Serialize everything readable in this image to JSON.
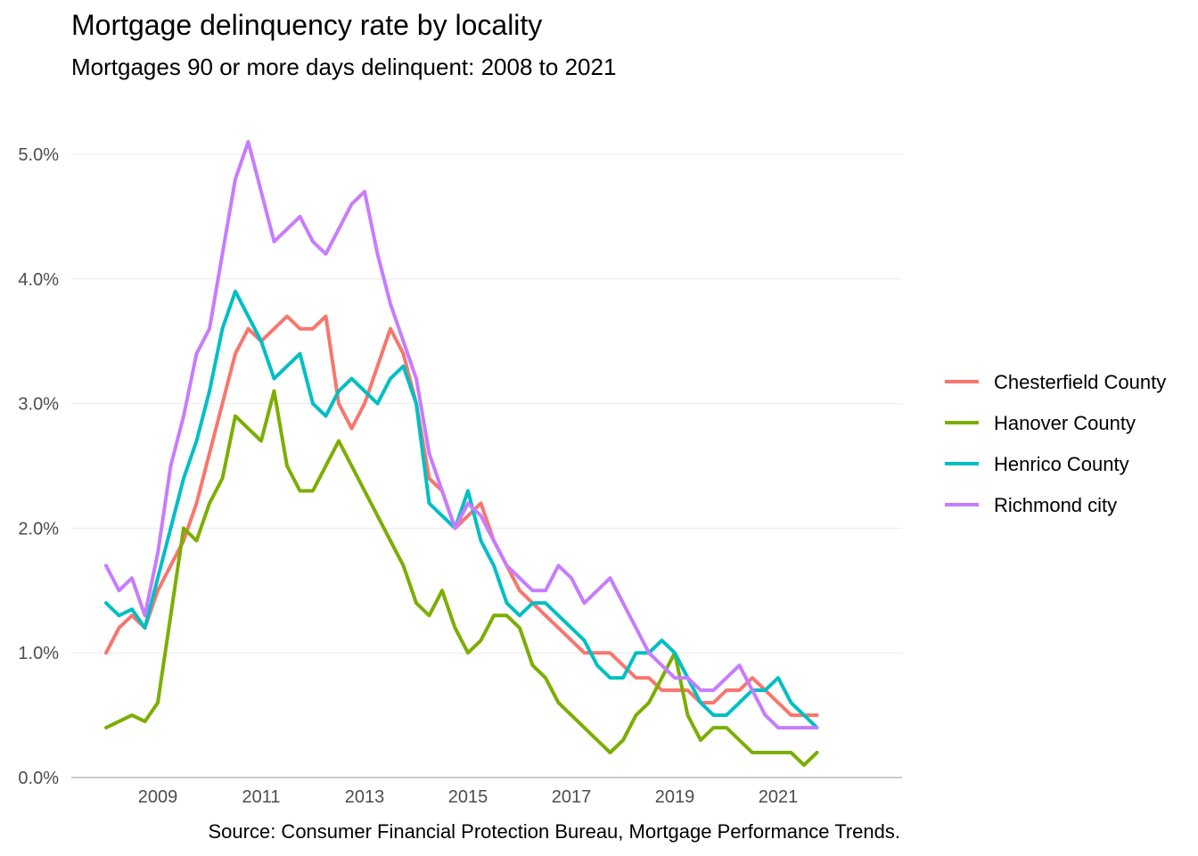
{
  "chart_data": {
    "type": "line",
    "title": "Mortgage delinquency rate by locality",
    "subtitle": "Mortgages 90 or more days delinquent: 2008 to 2021",
    "caption": "Source: Consumer Financial Protection Bureau, Mortgage Performance Trends.",
    "xlabel": "",
    "ylabel": "",
    "x_start": 2008.0,
    "x_step": 0.25,
    "xlim": [
      2008.0,
      2021.75
    ],
    "ylim": [
      0,
      5.3
    ],
    "x_ticks": [
      "2009",
      "2011",
      "2013",
      "2015",
      "2017",
      "2019",
      "2021"
    ],
    "y_ticks": [
      "0.0%",
      "1.0%",
      "2.0%",
      "3.0%",
      "4.0%",
      "5.0%"
    ],
    "legend_position": "right",
    "grid": true,
    "series": [
      {
        "name": "Chesterfield County",
        "color": "#F8766D",
        "values": [
          1.0,
          1.2,
          1.3,
          1.2,
          1.5,
          1.7,
          1.9,
          2.2,
          2.6,
          3.0,
          3.4,
          3.6,
          3.5,
          3.6,
          3.7,
          3.6,
          3.6,
          3.7,
          3.0,
          2.8,
          3.0,
          3.3,
          3.6,
          3.4,
          3.0,
          2.4,
          2.3,
          2.0,
          2.1,
          2.2,
          1.9,
          1.7,
          1.5,
          1.4,
          1.3,
          1.2,
          1.1,
          1.0,
          1.0,
          1.0,
          0.9,
          0.8,
          0.8,
          0.7,
          0.7,
          0.7,
          0.6,
          0.6,
          0.7,
          0.7,
          0.8,
          0.7,
          0.6,
          0.5,
          0.5,
          0.5
        ]
      },
      {
        "name": "Hanover County",
        "color": "#7CAE00",
        "values": [
          0.4,
          0.45,
          0.5,
          0.45,
          0.6,
          1.3,
          2.0,
          1.9,
          2.2,
          2.4,
          2.9,
          2.8,
          2.7,
          3.1,
          2.5,
          2.3,
          2.3,
          2.5,
          2.7,
          2.5,
          2.3,
          2.1,
          1.9,
          1.7,
          1.4,
          1.3,
          1.5,
          1.2,
          1.0,
          1.1,
          1.3,
          1.3,
          1.2,
          0.9,
          0.8,
          0.6,
          0.5,
          0.4,
          0.3,
          0.2,
          0.3,
          0.5,
          0.6,
          0.8,
          1.0,
          0.5,
          0.3,
          0.4,
          0.4,
          0.3,
          0.2,
          0.2,
          0.2,
          0.2,
          0.1,
          0.2
        ]
      },
      {
        "name": "Henrico County",
        "color": "#00BFC4",
        "values": [
          1.4,
          1.3,
          1.35,
          1.2,
          1.6,
          2.0,
          2.4,
          2.7,
          3.1,
          3.6,
          3.9,
          3.7,
          3.5,
          3.2,
          3.3,
          3.4,
          3.0,
          2.9,
          3.1,
          3.2,
          3.1,
          3.0,
          3.2,
          3.3,
          3.0,
          2.2,
          2.1,
          2.0,
          2.3,
          1.9,
          1.7,
          1.4,
          1.3,
          1.4,
          1.4,
          1.3,
          1.2,
          1.1,
          0.9,
          0.8,
          0.8,
          1.0,
          1.0,
          1.1,
          1.0,
          0.8,
          0.6,
          0.5,
          0.5,
          0.6,
          0.7,
          0.7,
          0.8,
          0.6,
          0.5,
          0.4
        ]
      },
      {
        "name": "Richmond city",
        "color": "#C77CFF",
        "values": [
          1.7,
          1.5,
          1.6,
          1.3,
          1.8,
          2.5,
          2.9,
          3.4,
          3.6,
          4.2,
          4.8,
          5.1,
          4.7,
          4.3,
          4.4,
          4.5,
          4.3,
          4.2,
          4.4,
          4.6,
          4.7,
          4.2,
          3.8,
          3.5,
          3.2,
          2.6,
          2.3,
          2.0,
          2.2,
          2.1,
          1.9,
          1.7,
          1.6,
          1.5,
          1.5,
          1.7,
          1.6,
          1.4,
          1.5,
          1.6,
          1.4,
          1.2,
          1.0,
          0.9,
          0.8,
          0.8,
          0.7,
          0.7,
          0.8,
          0.9,
          0.7,
          0.5,
          0.4,
          0.4,
          0.4,
          0.4
        ]
      }
    ]
  }
}
